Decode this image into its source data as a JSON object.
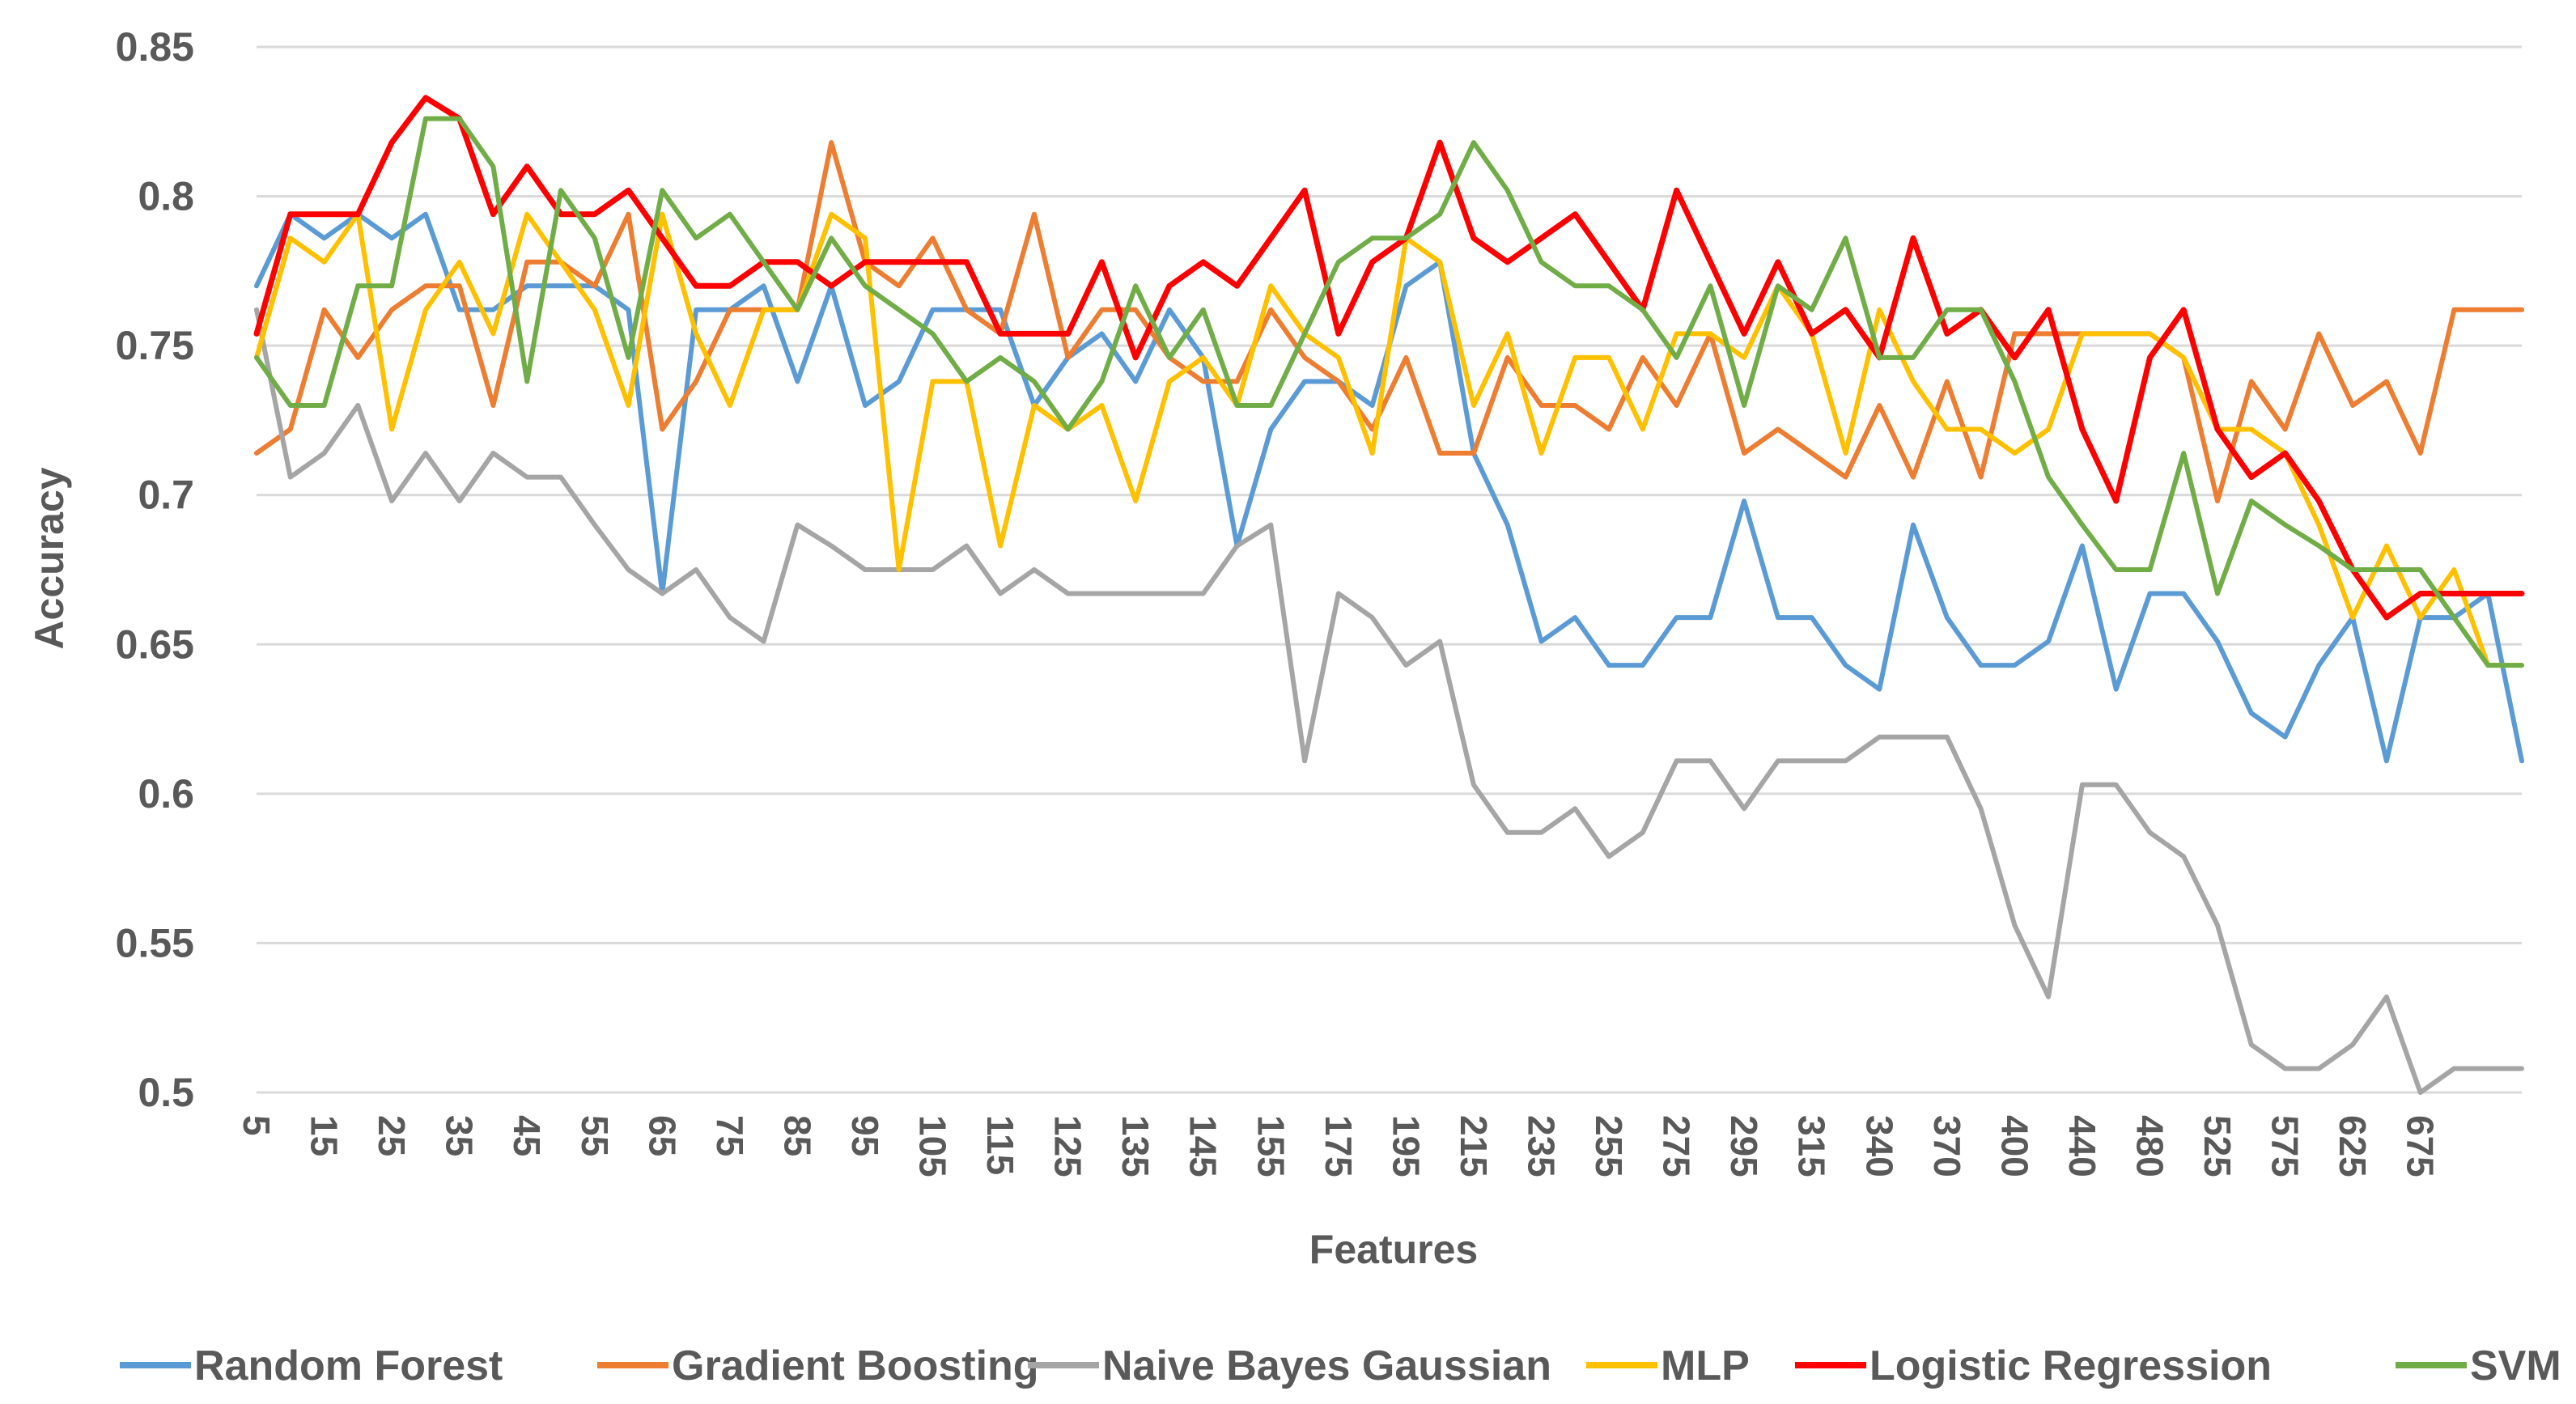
{
  "chart_data": {
    "type": "line",
    "title": "",
    "xlabel": "Features",
    "ylabel": "Accuracy",
    "ylim": [
      0.5,
      0.85
    ],
    "yticks": [
      0.5,
      0.55,
      0.6,
      0.65,
      0.7,
      0.75,
      0.8,
      0.85
    ],
    "ytick_labels": [
      "0.5",
      "0.55",
      "0.6",
      "0.65",
      "0.7",
      "0.75",
      "0.8",
      "0.85"
    ],
    "gridlines": true,
    "legend_position": "bottom",
    "x": [
      5,
      10,
      15,
      20,
      25,
      30,
      35,
      40,
      45,
      50,
      55,
      60,
      65,
      70,
      75,
      80,
      85,
      90,
      95,
      100,
      105,
      110,
      115,
      120,
      125,
      130,
      135,
      140,
      145,
      150,
      155,
      160,
      175,
      180,
      185,
      190,
      195,
      200,
      215,
      220,
      235,
      240,
      255,
      260,
      275,
      280,
      295,
      300,
      315,
      320,
      340,
      350,
      370,
      380,
      400,
      420,
      440,
      460,
      480,
      500,
      525,
      550,
      575,
      600,
      625,
      650,
      675,
      700
    ],
    "x_tick_labels": [
      "5",
      "15",
      "25",
      "35",
      "45",
      "55",
      "65",
      "75",
      "85",
      "95",
      "105",
      "115",
      "125",
      "135",
      "145",
      "155",
      "175",
      "195",
      "215",
      "235",
      "255",
      "275",
      "295",
      "315",
      "340",
      "370",
      "400",
      "440",
      "480",
      "525",
      "575",
      "625",
      "675"
    ],
    "series": [
      {
        "name": "Random Forest",
        "color": "#5B9BD5",
        "values": [
          0.77,
          0.794,
          0.786,
          0.794,
          0.786,
          0.794,
          0.762,
          0.762,
          0.77,
          0.77,
          0.77,
          0.762,
          0.667,
          0.762,
          0.762,
          0.77,
          0.738,
          0.77,
          0.73,
          0.738,
          0.762,
          0.762,
          0.762,
          0.73,
          0.746,
          0.754,
          0.738,
          0.762,
          0.746,
          0.683,
          0.722,
          0.738,
          0.738,
          0.73,
          0.77,
          0.778,
          0.714,
          0.69,
          0.651,
          0.659,
          0.643,
          0.643,
          0.659,
          0.659,
          0.698,
          0.659,
          0.659,
          0.643,
          0.635,
          0.69,
          0.659,
          0.643,
          0.643,
          0.651,
          0.683,
          0.635,
          0.667,
          0.667,
          0.651,
          0.627,
          0.619,
          0.643,
          0.659,
          0.611,
          0.659,
          0.659,
          0.667,
          0.611
        ]
      },
      {
        "name": "Gradient Boosting",
        "color": "#ED7D31",
        "values": [
          0.714,
          0.722,
          0.762,
          0.746,
          0.762,
          0.77,
          0.77,
          0.73,
          0.778,
          0.778,
          0.77,
          0.794,
          0.722,
          0.738,
          0.762,
          0.762,
          0.762,
          0.818,
          0.778,
          0.77,
          0.786,
          0.762,
          0.754,
          0.794,
          0.746,
          0.762,
          0.762,
          0.746,
          0.738,
          0.738,
          0.762,
          0.746,
          0.738,
          0.722,
          0.746,
          0.714,
          0.714,
          0.746,
          0.73,
          0.73,
          0.722,
          0.746,
          0.73,
          0.754,
          0.714,
          0.722,
          0.714,
          0.706,
          0.73,
          0.706,
          0.738,
          0.706,
          0.754,
          0.754,
          0.754,
          0.754,
          0.754,
          0.746,
          0.698,
          0.738,
          0.722,
          0.754,
          0.73,
          0.738,
          0.714,
          0.762,
          0.762,
          0.762
        ]
      },
      {
        "name": "Naive Bayes Gaussian",
        "color": "#A5A5A5",
        "values": [
          0.762,
          0.706,
          0.714,
          0.73,
          0.698,
          0.714,
          0.698,
          0.714,
          0.706,
          0.706,
          0.69,
          0.675,
          0.667,
          0.675,
          0.659,
          0.651,
          0.69,
          0.683,
          0.675,
          0.675,
          0.675,
          0.683,
          0.667,
          0.675,
          0.667,
          0.667,
          0.667,
          0.667,
          0.667,
          0.683,
          0.69,
          0.611,
          0.667,
          0.659,
          0.643,
          0.651,
          0.603,
          0.587,
          0.587,
          0.595,
          0.579,
          0.587,
          0.611,
          0.611,
          0.595,
          0.611,
          0.611,
          0.611,
          0.619,
          0.619,
          0.619,
          0.595,
          0.556,
          0.532,
          0.603,
          0.603,
          0.587,
          0.579,
          0.556,
          0.516,
          0.508,
          0.508,
          0.516,
          0.532,
          0.5,
          0.508,
          0.508,
          0.508
        ]
      },
      {
        "name": "MLP",
        "color": "#FFC000",
        "values": [
          0.746,
          0.786,
          0.778,
          0.794,
          0.722,
          0.762,
          0.778,
          0.754,
          0.794,
          0.778,
          0.762,
          0.73,
          0.794,
          0.754,
          0.73,
          0.762,
          0.762,
          0.794,
          0.786,
          0.675,
          0.738,
          0.738,
          0.683,
          0.73,
          0.722,
          0.73,
          0.698,
          0.738,
          0.746,
          0.73,
          0.77,
          0.754,
          0.746,
          0.714,
          0.786,
          0.778,
          0.73,
          0.754,
          0.714,
          0.746,
          0.746,
          0.722,
          0.754,
          0.754,
          0.746,
          0.77,
          0.754,
          0.714,
          0.762,
          0.738,
          0.722,
          0.722,
          0.714,
          0.722,
          0.754,
          0.754,
          0.754,
          0.746,
          0.722,
          0.722,
          0.714,
          0.69,
          0.659,
          0.683,
          0.659,
          0.675,
          0.643,
          0.643
        ]
      },
      {
        "name": "Logistic Regression",
        "color": "#FF0000",
        "values": [
          0.754,
          0.794,
          0.794,
          0.794,
          0.818,
          0.833,
          0.826,
          0.794,
          0.81,
          0.794,
          0.794,
          0.802,
          0.786,
          0.77,
          0.77,
          0.778,
          0.778,
          0.77,
          0.778,
          0.778,
          0.778,
          0.778,
          0.754,
          0.754,
          0.754,
          0.778,
          0.746,
          0.77,
          0.778,
          0.77,
          0.786,
          0.802,
          0.754,
          0.778,
          0.786,
          0.818,
          0.786,
          0.778,
          0.786,
          0.794,
          0.778,
          0.762,
          0.802,
          0.778,
          0.754,
          0.778,
          0.754,
          0.762,
          0.746,
          0.786,
          0.754,
          0.762,
          0.746,
          0.762,
          0.722,
          0.698,
          0.746,
          0.762,
          0.722,
          0.706,
          0.714,
          0.698,
          0.675,
          0.659,
          0.667,
          0.667,
          0.667,
          0.667
        ]
      },
      {
        "name": "SVM",
        "color": "#70AD47",
        "values": [
          0.746,
          0.73,
          0.73,
          0.77,
          0.77,
          0.826,
          0.826,
          0.81,
          0.738,
          0.802,
          0.786,
          0.746,
          0.802,
          0.786,
          0.794,
          0.778,
          0.762,
          0.786,
          0.77,
          0.762,
          0.754,
          0.738,
          0.746,
          0.738,
          0.722,
          0.738,
          0.77,
          0.746,
          0.762,
          0.73,
          0.73,
          0.754,
          0.778,
          0.786,
          0.786,
          0.794,
          0.818,
          0.802,
          0.778,
          0.77,
          0.77,
          0.762,
          0.746,
          0.77,
          0.73,
          0.77,
          0.762,
          0.786,
          0.746,
          0.746,
          0.762,
          0.762,
          0.738,
          0.706,
          0.69,
          0.675,
          0.675,
          0.714,
          0.667,
          0.698,
          0.69,
          0.683,
          0.675,
          0.675,
          0.675,
          0.659,
          0.643,
          0.643
        ]
      }
    ]
  }
}
